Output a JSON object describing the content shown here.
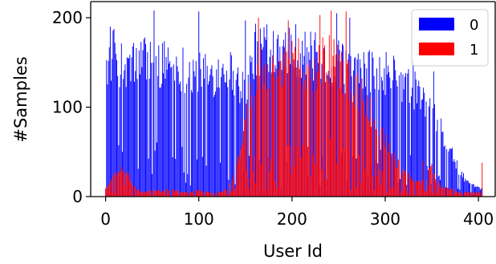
{
  "chart_data": {
    "type": "bar",
    "stacked": false,
    "xlabel": "User Id",
    "ylabel": "#Samples",
    "xlim": [
      -16,
      418
    ],
    "ylim": [
      0,
      218
    ],
    "xticks": [
      0,
      100,
      200,
      300,
      400
    ],
    "yticks": [
      0,
      100,
      200
    ],
    "legend": {
      "placement": "top-right"
    },
    "colors": {
      "0": "#0000ff",
      "1": "#ff0000"
    },
    "series": [
      {
        "name": "0",
        "profile": [
          [
            0,
            155
          ],
          [
            10,
            175
          ],
          [
            20,
            150
          ],
          [
            30,
            160
          ],
          [
            40,
            165
          ],
          [
            50,
            170
          ],
          [
            60,
            160
          ],
          [
            70,
            165
          ],
          [
            80,
            158
          ],
          [
            90,
            150
          ],
          [
            100,
            150
          ],
          [
            110,
            145
          ],
          [
            120,
            150
          ],
          [
            130,
            160
          ],
          [
            140,
            140
          ],
          [
            150,
            130
          ],
          [
            160,
            175
          ],
          [
            170,
            185
          ],
          [
            180,
            180
          ],
          [
            190,
            185
          ],
          [
            200,
            180
          ],
          [
            210,
            175
          ],
          [
            220,
            170
          ],
          [
            230,
            165
          ],
          [
            240,
            160
          ],
          [
            250,
            160
          ],
          [
            260,
            155
          ],
          [
            270,
            150
          ],
          [
            280,
            150
          ],
          [
            290,
            148
          ],
          [
            300,
            150
          ],
          [
            310,
            145
          ],
          [
            320,
            135
          ],
          [
            330,
            130
          ],
          [
            340,
            118
          ],
          [
            350,
            100
          ],
          [
            360,
            80
          ],
          [
            370,
            55
          ],
          [
            380,
            30
          ],
          [
            390,
            15
          ],
          [
            400,
            10
          ]
        ],
        "peaks": [
          [
            5,
            190
          ],
          [
            52,
            208
          ],
          [
            100,
            207
          ],
          [
            150,
            197
          ],
          [
            248,
            205
          ],
          [
            262,
            200
          ],
          [
            330,
            152
          ],
          [
            352,
            140
          ]
        ]
      },
      {
        "name": "1",
        "profile": [
          [
            0,
            10
          ],
          [
            10,
            25
          ],
          [
            20,
            35
          ],
          [
            30,
            12
          ],
          [
            40,
            5
          ],
          [
            50,
            8
          ],
          [
            60,
            6
          ],
          [
            70,
            10
          ],
          [
            80,
            5
          ],
          [
            90,
            5
          ],
          [
            100,
            8
          ],
          [
            110,
            5
          ],
          [
            120,
            5
          ],
          [
            130,
            8
          ],
          [
            140,
            30
          ],
          [
            150,
            90
          ],
          [
            160,
            150
          ],
          [
            170,
            160
          ],
          [
            180,
            150
          ],
          [
            190,
            155
          ],
          [
            200,
            165
          ],
          [
            210,
            160
          ],
          [
            220,
            150
          ],
          [
            230,
            160
          ],
          [
            240,
            170
          ],
          [
            250,
            155
          ],
          [
            260,
            140
          ],
          [
            270,
            130
          ],
          [
            280,
            110
          ],
          [
            290,
            95
          ],
          [
            300,
            70
          ],
          [
            310,
            45
          ],
          [
            320,
            30
          ],
          [
            330,
            20
          ],
          [
            340,
            15
          ],
          [
            350,
            35
          ],
          [
            360,
            10
          ],
          [
            370,
            10
          ],
          [
            380,
            5
          ],
          [
            390,
            5
          ],
          [
            400,
            5
          ]
        ],
        "peaks": [
          [
            164,
            200
          ],
          [
            196,
            197
          ],
          [
            230,
            203
          ],
          [
            242,
            208
          ],
          [
            258,
            207
          ],
          [
            340,
            40
          ],
          [
            404,
            38
          ]
        ]
      }
    ]
  }
}
